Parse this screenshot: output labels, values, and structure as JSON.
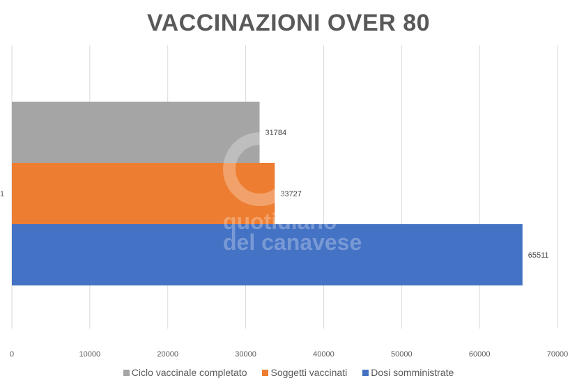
{
  "chart_data": {
    "type": "bar",
    "orientation": "horizontal",
    "title": "VACCINAZIONI OVER 80",
    "categories": [
      "1"
    ],
    "series": [
      {
        "name": "Ciclo vaccinale completato",
        "values": [
          31784
        ],
        "color": "#A5A5A5"
      },
      {
        "name": "Soggetti vaccinati",
        "values": [
          33727
        ],
        "color": "#ED7D31"
      },
      {
        "name": "Dosi somministrate",
        "values": [
          65511
        ],
        "color": "#4472C4"
      }
    ],
    "xlim": [
      0,
      70000
    ],
    "xticks": [
      "0",
      "10000",
      "20000",
      "30000",
      "40000",
      "50000",
      "60000",
      "70000"
    ],
    "grid": true,
    "legend": "bottom",
    "data_labels": true
  },
  "watermark": "Quotidiano del Canavese"
}
